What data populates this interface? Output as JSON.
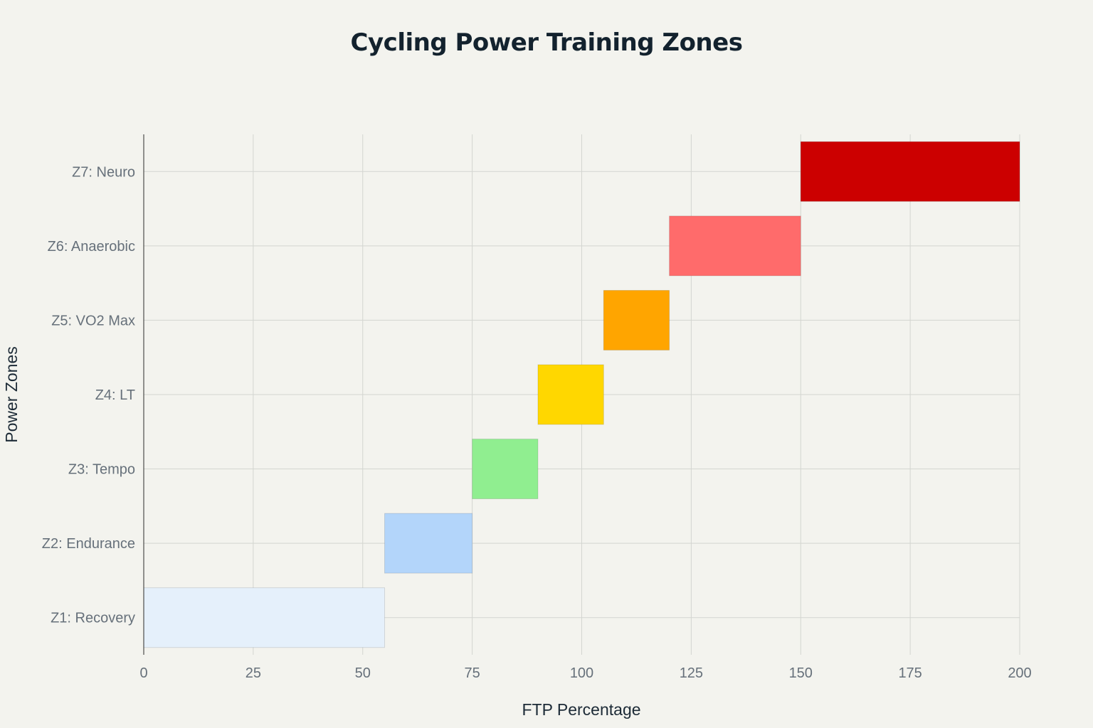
{
  "chart_data": {
    "type": "bar",
    "orientation": "horizontal",
    "title": "Cycling Power Training Zones",
    "xlabel": "FTP Percentage",
    "ylabel": "Power Zones",
    "xlim": [
      0,
      200
    ],
    "xticks": [
      0,
      25,
      50,
      75,
      100,
      125,
      150,
      175,
      200
    ],
    "grid": true,
    "categories": [
      "Z1: Recovery",
      "Z2: Endurance",
      "Z3: Tempo",
      "Z4: LT",
      "Z5: VO2 Max",
      "Z6: Anaerobic",
      "Z7: Neuro"
    ],
    "ranges": [
      {
        "zone": "Z1: Recovery",
        "start": 0,
        "end": 55,
        "color": "#e5f0fb"
      },
      {
        "zone": "Z2: Endurance",
        "start": 55,
        "end": 75,
        "color": "#b3d5fa"
      },
      {
        "zone": "Z3: Tempo",
        "start": 75,
        "end": 90,
        "color": "#90ee90"
      },
      {
        "zone": "Z4: LT",
        "start": 90,
        "end": 105,
        "color": "#ffd700"
      },
      {
        "zone": "Z5: VO2 Max",
        "start": 105,
        "end": 120,
        "color": "#ffa500"
      },
      {
        "zone": "Z6: Anaerobic",
        "start": 120,
        "end": 150,
        "color": "#ff6b6b"
      },
      {
        "zone": "Z7: Neuro",
        "start": 150,
        "end": 200,
        "color": "#cc0000"
      }
    ]
  }
}
